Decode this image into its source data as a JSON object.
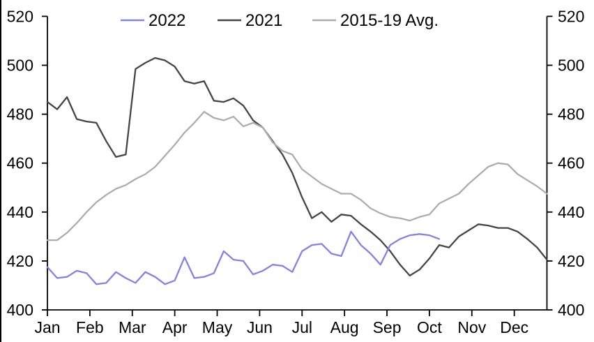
{
  "figure": {
    "background": "#ffffff",
    "border_left_color": "#000000"
  },
  "chart_data": {
    "type": "line",
    "title": "",
    "x_unit": "weekly observations across one year",
    "months": [
      "Jan",
      "Feb",
      "Mar",
      "Apr",
      "May",
      "Jun",
      "Jul",
      "Aug",
      "Sep",
      "Oct",
      "Nov",
      "Dec"
    ],
    "y_axis": {
      "min": 400,
      "max": 520,
      "step": 20,
      "ticks": [
        520,
        500,
        480,
        460,
        440,
        420,
        400
      ],
      "sides": "both",
      "grid": false
    },
    "legend": [
      {
        "label": "2022",
        "color": "#8282e8"
      },
      {
        "label": "2021",
        "color": "#454545"
      },
      {
        "label": "2015-19 Avg.",
        "color": "#adadad"
      }
    ],
    "series": [
      {
        "name": "2021",
        "color": "#454545",
        "start_week": 1,
        "values": [
          485,
          482,
          487,
          478,
          477,
          476.5,
          469,
          462.5,
          463.5,
          498.5,
          501,
          503,
          502,
          499.5,
          493.5,
          492.5,
          493.5,
          485.5,
          485,
          486.5,
          483.5,
          477.5,
          474.5,
          469,
          463.5,
          456,
          446,
          437.5,
          440,
          436,
          439,
          438.5,
          435,
          432,
          428.5,
          424,
          418.5,
          414,
          416.5,
          421,
          426.5,
          425.5,
          430,
          432.5,
          435,
          434.5,
          433.5,
          433.5,
          432,
          429,
          425.5,
          420.5
        ]
      },
      {
        "name": "2015-19 Avg.",
        "color": "#adadad",
        "start_week": 1,
        "values": [
          428.5,
          428.5,
          431.5,
          435.5,
          440,
          444,
          447,
          449.5,
          451,
          453.5,
          455.5,
          458.5,
          463,
          467.5,
          472.5,
          476.5,
          481,
          478.5,
          477.5,
          479,
          475,
          476.5,
          474.5,
          468.5,
          465,
          463.5,
          457.5,
          454.5,
          451.5,
          449.5,
          447.5,
          447.5,
          445,
          441.5,
          439.5,
          438,
          437.5,
          436.5,
          438,
          439,
          443.5,
          445.5,
          447.5,
          451.5,
          455,
          458.5,
          460,
          459.5,
          455.5,
          453,
          450.5,
          447.5
        ]
      },
      {
        "name": "2022",
        "color": "#8282e8",
        "start_week": 1,
        "values": [
          417.5,
          413,
          413.5,
          416,
          415,
          410.5,
          411,
          415.5,
          413,
          411,
          415.5,
          413.5,
          410.5,
          412,
          421.5,
          413,
          413.5,
          415,
          424,
          420.5,
          420,
          414.5,
          416,
          418.5,
          418,
          415.5,
          424,
          426.5,
          427,
          423,
          422,
          432,
          426.5,
          423,
          418.5,
          426.5,
          429,
          430.5,
          431,
          430.5,
          429
        ]
      }
    ]
  }
}
